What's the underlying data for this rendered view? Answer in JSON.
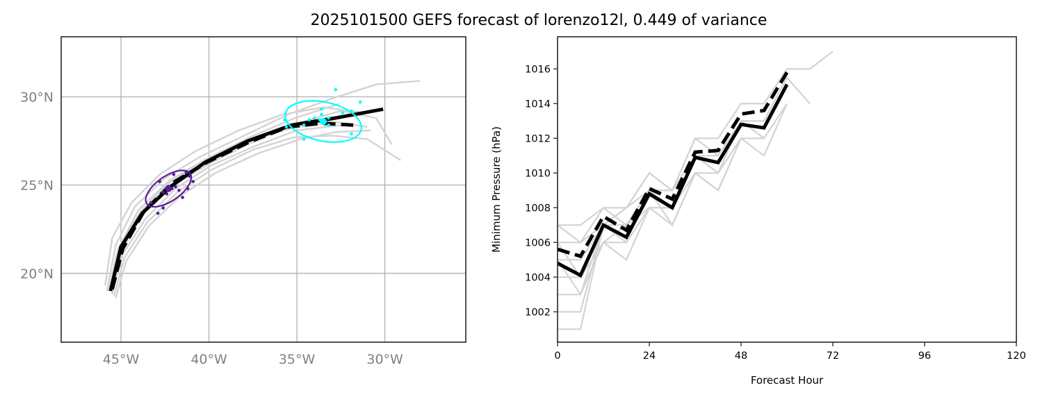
{
  "title": "2025101500 GEFS forecast of lorenzo12l, 0.449 of variance",
  "colors": {
    "ensemble": "#d3d3d3",
    "mean": "#000000",
    "early_cluster": "#5a1e96",
    "late_cluster": "#00ffff",
    "grid": "#b0b0b0",
    "tick_map": "#808080"
  },
  "chart_data": [
    {
      "type": "line",
      "name": "track-map",
      "title": "",
      "xlabel": "",
      "ylabel": "",
      "xlim": [
        -48.4,
        -25.4
      ],
      "ylim": [
        16.1,
        33.4
      ],
      "grid": true,
      "x_ticks": [
        {
          "value": -45,
          "label": "45°W"
        },
        {
          "value": -40,
          "label": "40°W"
        },
        {
          "value": -35,
          "label": "35°W"
        },
        {
          "value": -30,
          "label": "30°W"
        }
      ],
      "y_ticks": [
        {
          "value": 20,
          "label": "20°N"
        },
        {
          "value": 25,
          "label": "25°N"
        },
        {
          "value": 30,
          "label": "30°N"
        }
      ],
      "series": [
        {
          "name": "member-1",
          "style": "ensemble",
          "lon": [
            -45.8,
            -45.3,
            -44.2,
            -42.5,
            -40.5,
            -38.0,
            -35.5,
            -33.0,
            -30.5,
            -28.0
          ],
          "lat": [
            19.0,
            21.6,
            23.8,
            25.4,
            26.6,
            27.8,
            29.0,
            29.9,
            30.7,
            30.9
          ]
        },
        {
          "name": "member-2",
          "style": "ensemble",
          "lon": [
            -45.5,
            -45.0,
            -43.8,
            -42.0,
            -40.0,
            -37.6,
            -35.0,
            -32.5,
            -30.5,
            -29.6
          ],
          "lat": [
            18.8,
            21.2,
            23.3,
            25.0,
            26.2,
            27.4,
            28.5,
            29.2,
            28.8,
            27.3
          ]
        },
        {
          "name": "member-3",
          "style": "ensemble",
          "lon": [
            -45.4,
            -44.8,
            -43.5,
            -41.8,
            -39.8,
            -37.5,
            -35.2,
            -33.0,
            -31.0,
            -29.1
          ],
          "lat": [
            18.7,
            20.9,
            22.9,
            24.6,
            25.9,
            27.0,
            27.7,
            27.8,
            27.6,
            26.4
          ]
        },
        {
          "name": "member-4",
          "style": "ensemble",
          "lon": [
            -45.9,
            -45.5,
            -44.4,
            -42.8,
            -40.8,
            -38.3,
            -35.8,
            -33.5,
            -31.2
          ],
          "lat": [
            19.3,
            22.0,
            24.0,
            25.6,
            26.9,
            28.1,
            29.0,
            29.4,
            29.1
          ]
        },
        {
          "name": "member-5",
          "style": "ensemble",
          "lon": [
            -45.6,
            -45.1,
            -43.9,
            -42.3,
            -40.3,
            -37.9,
            -35.4,
            -33.0,
            -31.0
          ],
          "lat": [
            19.1,
            21.5,
            23.5,
            25.1,
            26.4,
            27.5,
            28.2,
            28.6,
            28.3
          ]
        },
        {
          "name": "member-6",
          "style": "ensemble",
          "lon": [
            -45.3,
            -44.7,
            -43.4,
            -41.6,
            -39.6,
            -37.2,
            -34.8,
            -32.8,
            -30.8
          ],
          "lat": [
            18.6,
            20.7,
            22.7,
            24.4,
            25.7,
            26.8,
            27.6,
            28.0,
            28.1
          ]
        },
        {
          "name": "member-7",
          "style": "ensemble",
          "lon": [
            -45.7,
            -45.2,
            -44.0,
            -42.2,
            -40.1,
            -37.7,
            -35.1,
            -32.6
          ],
          "lat": [
            19.0,
            21.3,
            23.6,
            25.3,
            26.5,
            27.7,
            28.8,
            29.6
          ]
        },
        {
          "name": "member-8",
          "style": "ensemble",
          "lon": [
            -45.5,
            -44.9,
            -43.6,
            -41.9,
            -39.9,
            -37.4,
            -35.0,
            -32.4
          ],
          "lat": [
            18.9,
            21.1,
            23.1,
            24.8,
            26.1,
            27.2,
            28.1,
            28.4
          ]
        },
        {
          "name": "ensemble-mean",
          "style": "mean-solid",
          "lon": [
            -45.6,
            -45.0,
            -43.8,
            -42.2,
            -40.2,
            -37.8,
            -35.3,
            -32.8,
            -30.1
          ],
          "lat": [
            19.0,
            21.5,
            23.4,
            24.9,
            26.3,
            27.5,
            28.4,
            28.8,
            29.3
          ]
        },
        {
          "name": "deterministic",
          "style": "mean-dashed",
          "lon": [
            -45.5,
            -44.9,
            -43.7,
            -42.1,
            -40.1,
            -37.8,
            -35.5,
            -33.6,
            -31.8
          ],
          "lat": [
            19.1,
            21.4,
            23.5,
            25.1,
            26.3,
            27.4,
            28.3,
            28.5,
            28.4
          ]
        }
      ],
      "clusters": [
        {
          "name": "early-cluster",
          "color_key": "early_cluster",
          "center": [
            -42.3,
            24.8
          ],
          "semi_axes_deg": [
            1.5,
            0.7
          ],
          "angle_deg": 35,
          "points": [
            [
              -42.0,
              25.6
            ],
            [
              -41.1,
              25.5
            ],
            [
              -41.3,
              25.7
            ],
            [
              -42.8,
              25.2
            ],
            [
              -42.6,
              24.6
            ],
            [
              -42.3,
              24.9
            ],
            [
              -42.1,
              24.8
            ],
            [
              -41.9,
              24.9
            ],
            [
              -41.7,
              24.7
            ],
            [
              -42.4,
              24.5
            ],
            [
              -43.3,
              24.0
            ],
            [
              -42.6,
              23.7
            ],
            [
              -42.9,
              23.4
            ],
            [
              -41.2,
              24.8
            ],
            [
              -40.9,
              25.2
            ],
            [
              -41.5,
              24.3
            ]
          ]
        },
        {
          "name": "late-cluster",
          "color_key": "late_cluster",
          "center": [
            -33.5,
            28.6
          ],
          "semi_axes_deg": [
            2.2,
            1.1
          ],
          "angle_deg": -12,
          "points": [
            [
              -32.8,
              30.4
            ],
            [
              -31.4,
              29.7
            ],
            [
              -33.6,
              29.3
            ],
            [
              -33.6,
              29.0
            ],
            [
              -32.4,
              29.1
            ],
            [
              -31.9,
              29.2
            ],
            [
              -34.0,
              28.8
            ],
            [
              -33.7,
              28.7
            ],
            [
              -33.2,
              28.8
            ],
            [
              -34.3,
              28.7
            ],
            [
              -33.2,
              28.4
            ],
            [
              -35.6,
              28.3
            ],
            [
              -34.6,
              28.4
            ],
            [
              -35.7,
              28.7
            ],
            [
              -34.6,
              27.6
            ],
            [
              -31.9,
              27.9
            ]
          ]
        }
      ]
    },
    {
      "type": "line",
      "name": "pressure-plot",
      "title": "",
      "xlabel": "Forecast Hour",
      "ylabel": "Minimum Pressure (hPa)",
      "xlim": [
        0,
        120
      ],
      "ylim": [
        1000.25,
        1017.85
      ],
      "grid": false,
      "x_ticks": [
        0,
        24,
        48,
        72,
        96,
        120
      ],
      "y_ticks": [
        1002,
        1004,
        1006,
        1008,
        1010,
        1012,
        1014,
        1016
      ],
      "series": [
        {
          "name": "member-1",
          "style": "ensemble",
          "x": [
            0,
            6,
            12,
            18,
            24,
            30,
            36,
            42,
            48,
            54,
            60,
            66,
            72
          ],
          "y": [
            1007,
            1007,
            1008,
            1008,
            1010,
            1009,
            1012,
            1012,
            1014,
            1014,
            1016,
            1016,
            1017
          ]
        },
        {
          "name": "member-2",
          "style": "ensemble",
          "x": [
            0,
            6,
            12,
            18,
            24,
            30,
            36,
            42,
            48,
            54,
            60,
            66
          ],
          "y": [
            1006,
            1006,
            1007,
            1007,
            1009,
            1009,
            1011,
            1011,
            1013,
            1013,
            1015.5,
            1014
          ]
        },
        {
          "name": "member-3",
          "style": "ensemble",
          "x": [
            0,
            6,
            12,
            18,
            24,
            30,
            36,
            42,
            48,
            54,
            60
          ],
          "y": [
            1005,
            1005,
            1007,
            1006,
            1009,
            1008,
            1011,
            1010,
            1013,
            1012,
            1014
          ]
        },
        {
          "name": "member-4",
          "style": "ensemble",
          "x": [
            0,
            6,
            12,
            18,
            24,
            30,
            36,
            42,
            48,
            54,
            60
          ],
          "y": [
            1004,
            1004,
            1006,
            1005,
            1008,
            1007,
            1010,
            1009,
            1012,
            1011,
            1014
          ]
        },
        {
          "name": "member-5",
          "style": "ensemble",
          "x": [
            0,
            6,
            12,
            18,
            24,
            30,
            36,
            42,
            48
          ],
          "y": [
            1003,
            1003,
            1006,
            1006,
            1008,
            1008,
            1010,
            1010,
            1012
          ]
        },
        {
          "name": "member-6",
          "style": "ensemble",
          "x": [
            0,
            6,
            12,
            18,
            24,
            30,
            36,
            42,
            46
          ],
          "y": [
            1002,
            1002,
            1007,
            1007,
            1009,
            1007,
            1010,
            1009,
            1011
          ]
        },
        {
          "name": "member-7",
          "style": "ensemble",
          "x": [
            0,
            6,
            12,
            18,
            24,
            30,
            36,
            42,
            48,
            54
          ],
          "y": [
            1001,
            1001,
            1007,
            1008,
            1010,
            1009,
            1012,
            1011,
            1013,
            1013
          ]
        },
        {
          "name": "member-8",
          "style": "ensemble",
          "x": [
            0,
            6,
            12,
            18,
            24,
            30,
            36,
            42,
            48,
            54
          ],
          "y": [
            1007,
            1006,
            1008,
            1007,
            1009,
            1008,
            1011,
            1010,
            1012,
            1012
          ]
        },
        {
          "name": "member-9",
          "style": "ensemble",
          "x": [
            0,
            6,
            12,
            18,
            24,
            30,
            36
          ],
          "y": [
            1005,
            1003,
            1007,
            1008,
            1009,
            1009,
            1011
          ]
        },
        {
          "name": "member-10",
          "style": "ensemble",
          "x": [
            0,
            6,
            12,
            18,
            24,
            30,
            36
          ],
          "y": [
            1006,
            1004,
            1006,
            1007,
            1008,
            1008,
            1011
          ]
        },
        {
          "name": "ensemble-mean",
          "style": "mean-solid",
          "x": [
            0,
            6,
            12,
            18,
            24,
            30,
            36,
            42,
            48,
            54,
            60
          ],
          "y": [
            1004.8,
            1004.1,
            1007.0,
            1006.3,
            1008.8,
            1008.0,
            1010.9,
            1010.6,
            1012.8,
            1012.6,
            1015.1
          ]
        },
        {
          "name": "deterministic",
          "style": "mean-dashed",
          "x": [
            0,
            6,
            12,
            18,
            24,
            30,
            36,
            42,
            48,
            54,
            60
          ],
          "y": [
            1005.6,
            1005.2,
            1007.5,
            1006.7,
            1009.1,
            1008.5,
            1011.2,
            1011.3,
            1013.4,
            1013.6,
            1015.8
          ]
        }
      ]
    }
  ]
}
